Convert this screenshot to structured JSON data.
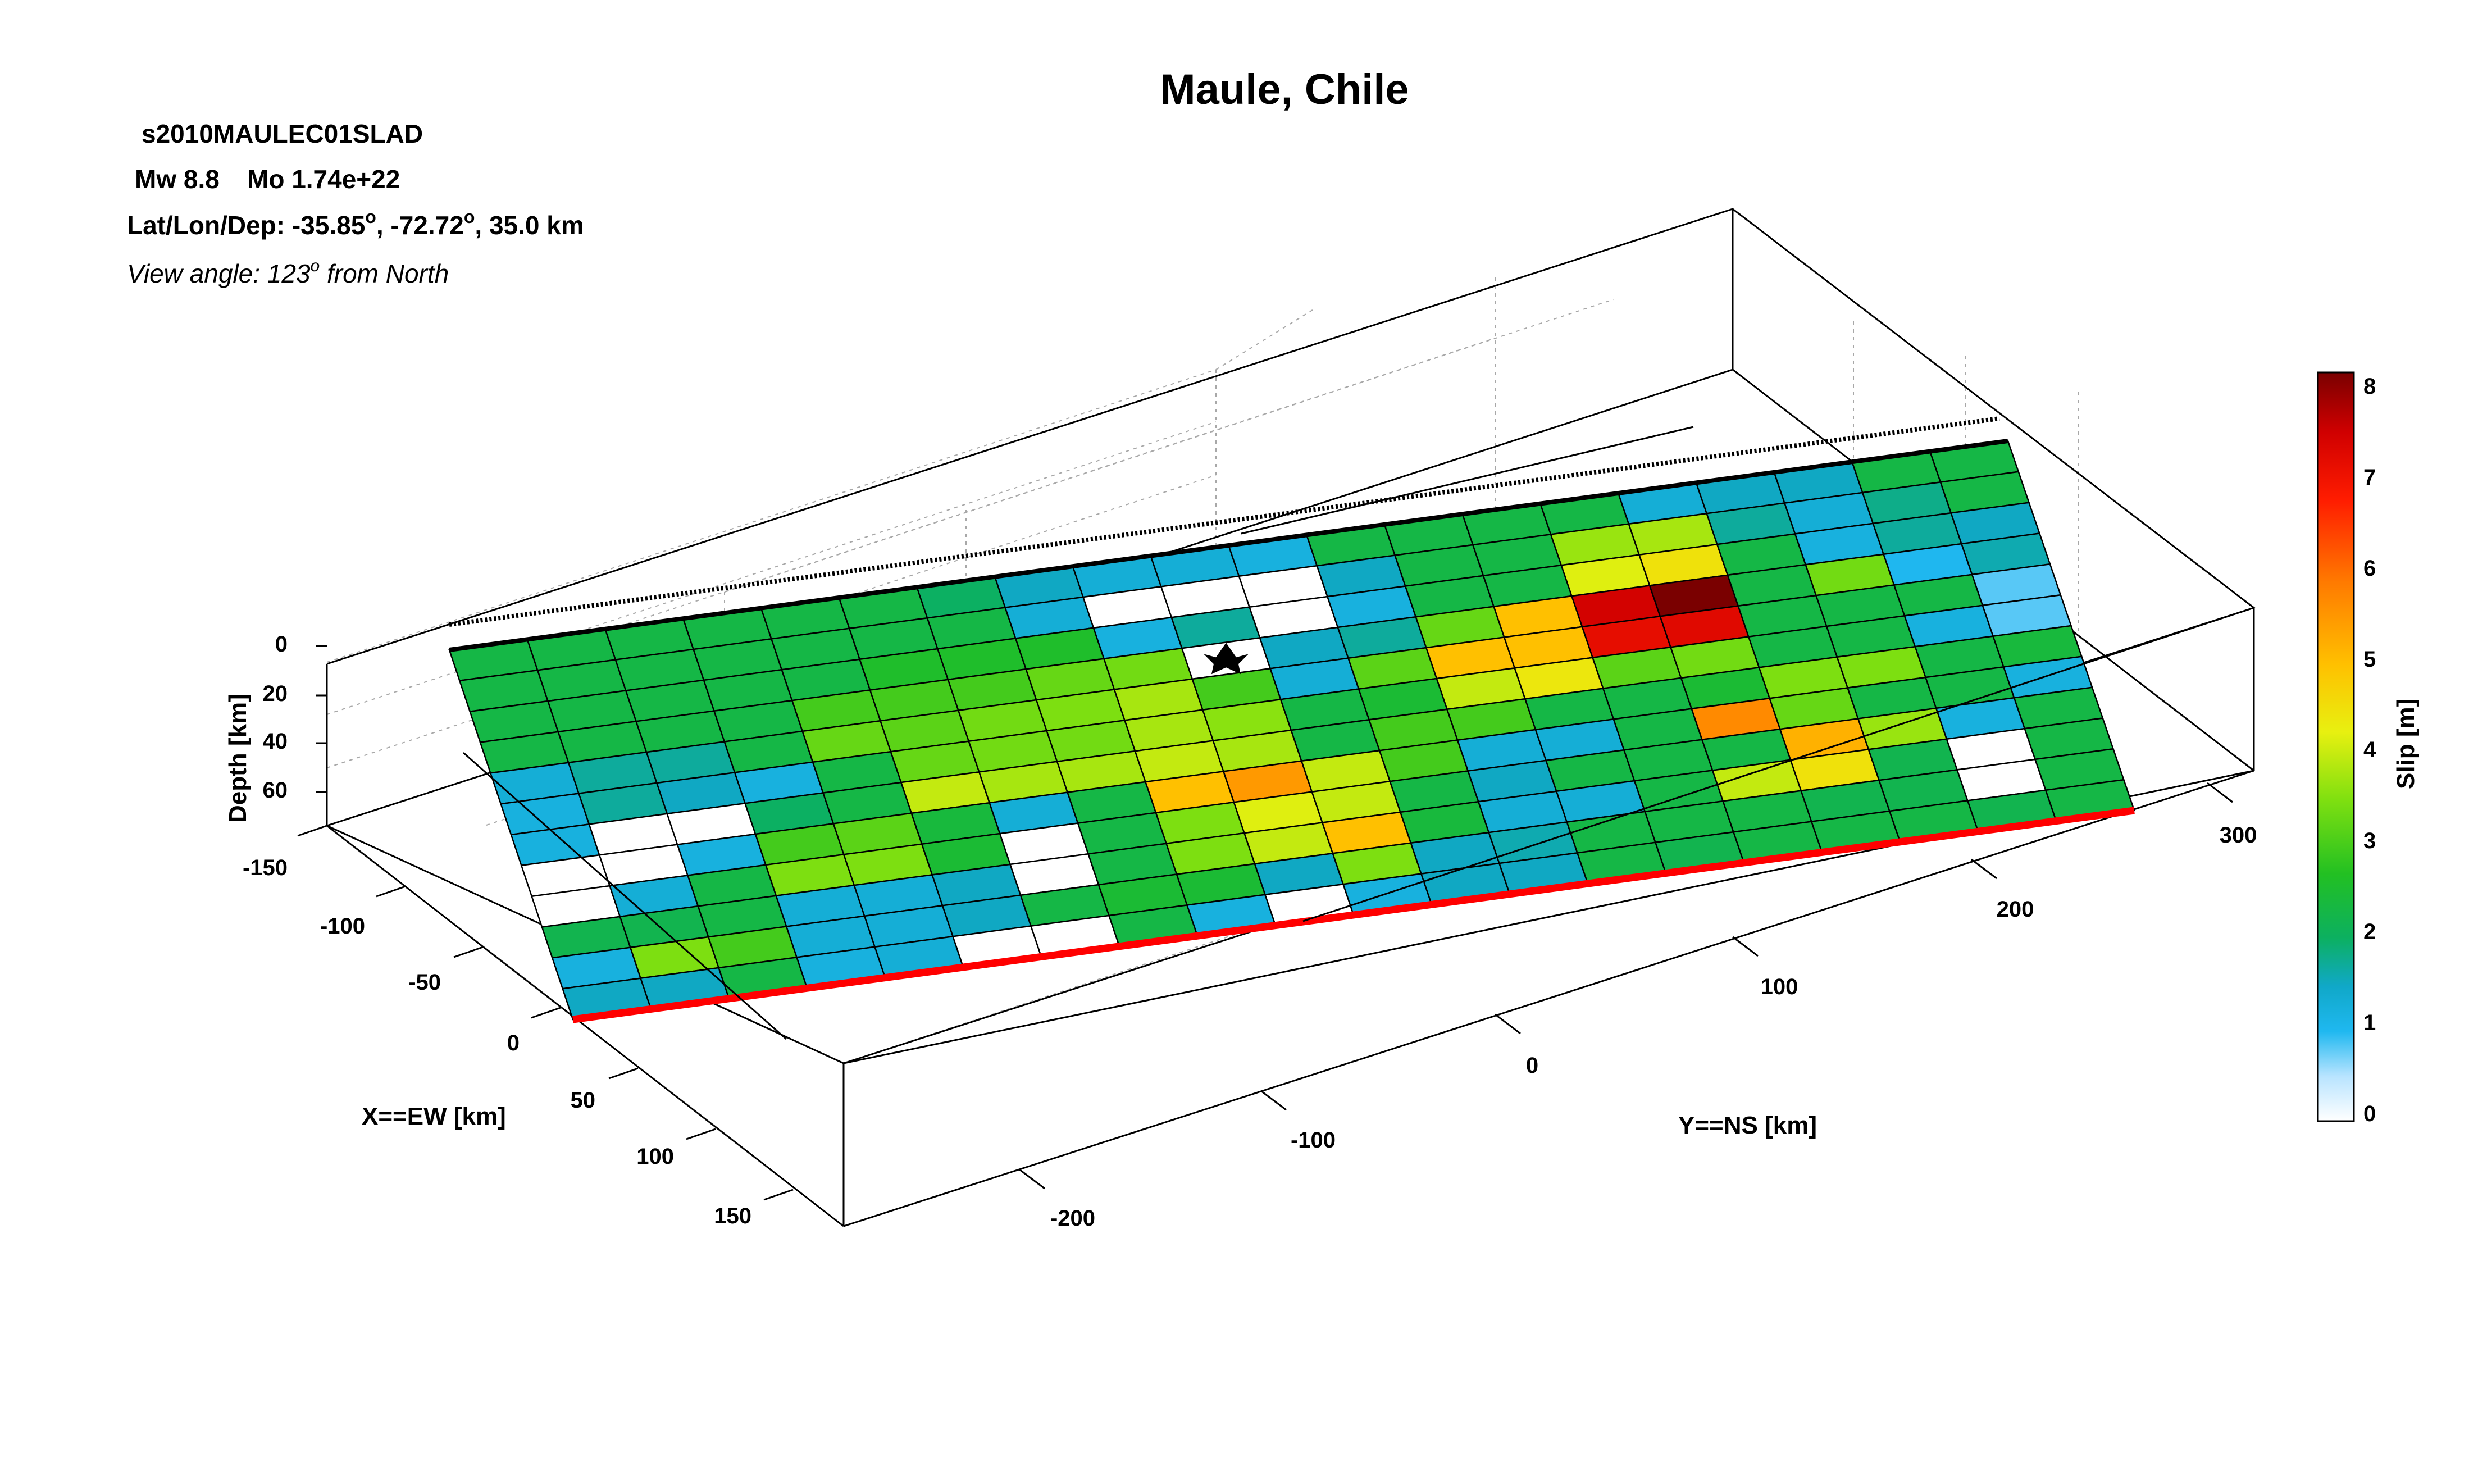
{
  "header": {
    "title": "Maule, Chile",
    "event_id": "s2010MAULEC01SLAD",
    "mw_label": "Mw 8.8",
    "mo_label": "Mo 1.74e+22",
    "location_prefix": "Lat/Lon/Dep: -35.85",
    "location_mid": ", -72.72",
    "location_suffix": ", 35.0 km",
    "degree_mark": "o",
    "view_prefix": "View angle: 123",
    "view_suffix": " from North"
  },
  "axes": {
    "depth_label": "Depth [km]",
    "x_label": "X==EW [km]",
    "y_label": "Y==NS [km]",
    "depth_ticks": [
      "0",
      "20",
      "40",
      "60"
    ],
    "x_ticks": [
      "-150",
      "-100",
      "-50",
      "0",
      "50",
      "100",
      "150"
    ],
    "y_ticks": [
      "-200",
      "-100",
      "0",
      "100",
      "200",
      "300"
    ],
    "colorbar_label": "Slip [m]",
    "colorbar_ticks": [
      "0",
      "1",
      "2",
      "3",
      "4",
      "5",
      "6",
      "7",
      "8"
    ]
  },
  "chart_data": {
    "type": "heatmap",
    "title": "Maule, Chile",
    "value_label": "Slip [m]",
    "colorbar_range": [
      0,
      8.2
    ],
    "depth_range_km": [
      0,
      70
    ],
    "x_range_km": [
      -150,
      150
    ],
    "y_range_km": [
      -230,
      310
    ],
    "grid_rows_along_dip": 12,
    "grid_cols_along_strike": 20,
    "hypocenter_cell": [
      3,
      9
    ],
    "trench_edge_color": "#ff0000",
    "slip_m": [
      [
        2.3,
        2.3,
        2.3,
        2.3,
        2.3,
        2.3,
        2.0,
        1.5,
        1.3,
        1.3,
        1.2,
        2.3,
        2.3,
        2.3,
        2.3,
        1.3,
        1.5,
        1.5,
        2.3,
        2.3
      ],
      [
        2.3,
        2.3,
        2.3,
        2.3,
        2.3,
        2.3,
        2.3,
        1.3,
        0.0,
        0.0,
        0.0,
        1.5,
        2.3,
        2.3,
        3.7,
        3.8,
        1.7,
        1.3,
        1.8,
        2.3
      ],
      [
        2.3,
        2.3,
        2.3,
        2.3,
        2.3,
        2.6,
        2.6,
        2.6,
        1.2,
        1.7,
        0.0,
        1.2,
        2.3,
        2.3,
        4.2,
        4.5,
        2.3,
        1.2,
        1.7,
        1.5
      ],
      [
        2.3,
        2.3,
        2.3,
        2.3,
        3.0,
        3.0,
        3.0,
        3.3,
        3.4,
        0.0,
        1.5,
        1.7,
        3.3,
        5.0,
        7.5,
        8.2,
        2.3,
        3.4,
        1.0,
        1.6
      ],
      [
        1.3,
        1.7,
        1.7,
        2.3,
        3.3,
        3.2,
        3.4,
        3.5,
        3.8,
        3.0,
        1.3,
        3.2,
        5.0,
        5.0,
        7.2,
        7.3,
        2.3,
        2.3,
        2.3,
        0.8
      ],
      [
        1.2,
        1.7,
        1.5,
        1.2,
        2.3,
        3.3,
        3.4,
        3.4,
        3.8,
        3.6,
        2.3,
        2.5,
        4.0,
        4.4,
        3.2,
        3.4,
        2.3,
        2.3,
        1.2,
        0.8
      ],
      [
        1.2,
        0.0,
        0.0,
        2.0,
        2.3,
        4.0,
        3.8,
        3.8,
        4.0,
        3.8,
        2.3,
        3.0,
        3.0,
        2.3,
        2.3,
        2.5,
        3.5,
        3.5,
        2.3,
        2.4
      ],
      [
        0.0,
        0.0,
        1.2,
        3.0,
        3.2,
        2.4,
        1.3,
        2.3,
        5.0,
        5.5,
        4.0,
        3.0,
        1.3,
        1.3,
        2.3,
        5.7,
        3.3,
        2.3,
        2.3,
        1.2
      ],
      [
        0.0,
        1.3,
        2.3,
        3.5,
        3.5,
        2.5,
        0.0,
        2.3,
        3.5,
        4.2,
        4.0,
        2.3,
        1.5,
        2.3,
        2.3,
        2.3,
        5.2,
        3.7,
        1.2,
        2.3
      ],
      [
        2.2,
        2.2,
        2.3,
        1.3,
        1.3,
        1.5,
        0.0,
        2.3,
        3.5,
        4.0,
        5.0,
        2.4,
        1.3,
        1.3,
        2.3,
        4.0,
        4.5,
        2.2,
        0.0,
        2.3
      ],
      [
        1.2,
        3.5,
        3.0,
        1.3,
        1.3,
        1.5,
        2.3,
        2.5,
        2.5,
        1.5,
        3.5,
        1.5,
        1.6,
        2.3,
        2.3,
        2.3,
        2.2,
        2.2,
        0.0,
        2.3
      ],
      [
        1.5,
        1.5,
        2.3,
        1.2,
        1.3,
        0.0,
        0.0,
        2.3,
        1.2,
        0.0,
        1.2,
        1.5,
        1.5,
        2.3,
        2.2,
        2.3,
        2.3,
        2.3,
        2.2,
        2.3
      ]
    ]
  }
}
